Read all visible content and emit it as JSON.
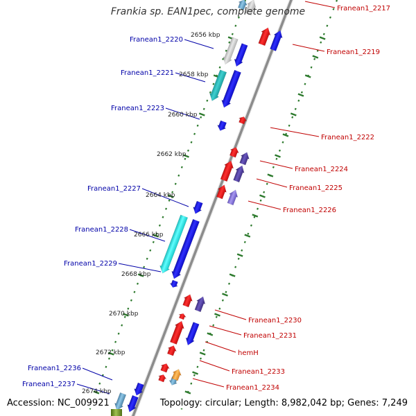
{
  "title": "Frankia sp. EAN1pec, complete genome",
  "accession": "Accession: NC_009921",
  "topology": "Topology: circular; Length: 8,982,042 bp; Genes: 7,249",
  "colors": {
    "forward_label": "#0000a8",
    "reverse_label": "#c00000",
    "backbone": "#8c8c8c",
    "tick": "#2d7a2d",
    "blue": "#0000e0",
    "red": "#e00000",
    "cyan": "#00cccc",
    "teal": "#20b0b0",
    "gray": "#b8b8b8",
    "indigo": "#403088",
    "lavender": "#7060d0",
    "orange": "#f09020",
    "steel": "#4a88b0",
    "olive": "#6a8a20"
  },
  "kbp_ticks": [
    "2656 kbp",
    "2658 kbp",
    "2660 kbp",
    "2662 kbp",
    "2664 kbp",
    "2666 kbp",
    "2668 kbp",
    "2670 kbp",
    "2672 kbp",
    "2674 kbp"
  ],
  "forward_labels": [
    "Franean1_2220",
    "Franean1_2221",
    "Franean1_2223",
    "Franean1_2227",
    "Franean1_2228",
    "Franean1_2229",
    "Franean1_2236",
    "Franean1_2237"
  ],
  "reverse_labels": [
    "Franean1_2217",
    "Franean1_2219",
    "Franean1_2222",
    "Franean1_2224",
    "Franean1_2225",
    "Franean1_2226",
    "Franean1_2230",
    "Franean1_2231",
    "hemH",
    "Franean1_2233",
    "Franean1_2234"
  ]
}
